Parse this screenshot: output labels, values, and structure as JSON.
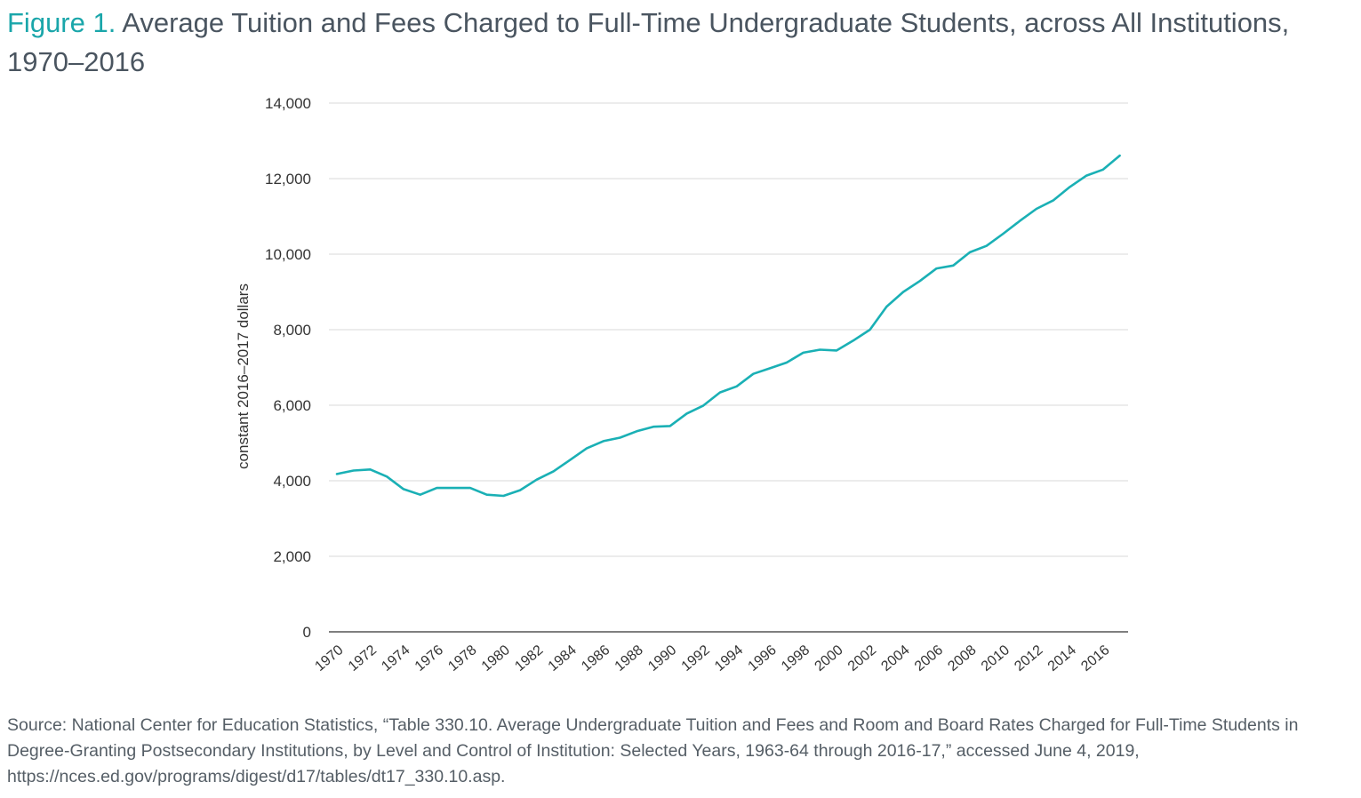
{
  "figure": {
    "label": "Figure 1.",
    "title": "Average Tuition and Fees Charged to Full-Time Undergraduate Students, across All Institutions, 1970–2016",
    "source": "Source: National Center for Education Statistics, “Table 330.10. Average Undergraduate Tuition and Fees and Room and Board Rates Charged for Full-Time Students in Degree-Granting Postsecondary Institutions, by Level and Control of Institution: Selected Years, 1963-64 through 2016-17,” accessed June 4, 2019, https://nces.ed.gov/programs/digest/d17/tables/dt17_330.10.asp."
  },
  "chart_data": {
    "type": "line",
    "title": "Average Tuition and Fees Charged to Full-Time Undergraduate Students, across All Institutions, 1970–2016",
    "xlabel": "",
    "ylabel": "constant 2016–2017 dollars",
    "ylim": [
      0,
      14000
    ],
    "yticks": [
      0,
      2000,
      4000,
      6000,
      8000,
      10000,
      12000,
      14000
    ],
    "ytick_labels": [
      "0",
      "2,000",
      "4,000",
      "6,000",
      "8,000",
      "10,000",
      "12,000",
      "14,000"
    ],
    "xticks": [
      "1970",
      "1972",
      "1974",
      "1976",
      "1978",
      "1980",
      "1982",
      "1984",
      "1986",
      "1988",
      "1990",
      "1992",
      "1994",
      "1996",
      "1998",
      "2000",
      "2002",
      "2004",
      "2006",
      "2008",
      "2010",
      "2012",
      "2014",
      "2016"
    ],
    "grid": "horizontal",
    "legend": "none",
    "color": "#1ab0b5",
    "x": [
      1970,
      1971,
      1972,
      1973,
      1974,
      1975,
      1976,
      1977,
      1978,
      1979,
      1980,
      1981,
      1982,
      1983,
      1984,
      1985,
      1986,
      1987,
      1988,
      1989,
      1990,
      1991,
      1992,
      1993,
      1994,
      1995,
      1996,
      1997,
      1998,
      1999,
      2000,
      2001,
      2002,
      2003,
      2004,
      2005,
      2006,
      2007,
      2008,
      2009,
      2010,
      2011,
      2012,
      2013,
      2014,
      2015,
      2016
    ],
    "series": [
      {
        "values": [
          4180,
          4270,
          4300,
          4110,
          3780,
          3630,
          3810,
          3810,
          3810,
          3630,
          3600,
          3750,
          4030,
          4250,
          4550,
          4860,
          5050,
          5140,
          5310,
          5430,
          5450,
          5780,
          5990,
          6340,
          6500,
          6830,
          6980,
          7130,
          7390,
          7470,
          7450,
          7710,
          8000,
          8610,
          9000,
          9290,
          9620,
          9700,
          10050,
          10220,
          10540,
          10880,
          11200,
          11420,
          11780,
          12080,
          12240
        ]
      }
    ],
    "last_point": {
      "x": 2017,
      "y": 12610
    }
  }
}
